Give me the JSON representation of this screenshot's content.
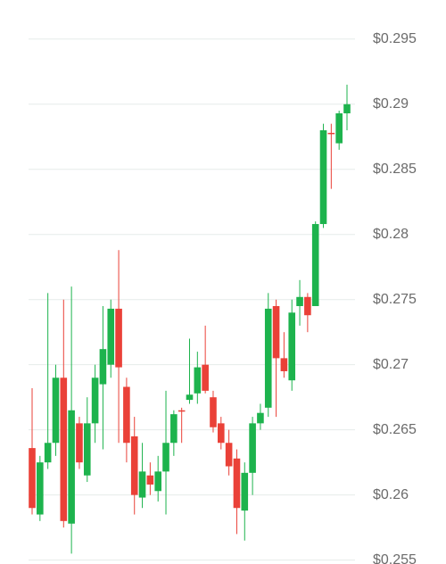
{
  "chart_data": {
    "type": "candlestick",
    "up_color": "#1db34d",
    "down_color": "#ea4138",
    "grid": true,
    "ylim": [
      0.2547,
      0.298
    ],
    "yticks": [
      {
        "value": 0.255,
        "label": "$0.255"
      },
      {
        "value": 0.26,
        "label": "$0.26"
      },
      {
        "value": 0.265,
        "label": "$0.265"
      },
      {
        "value": 0.27,
        "label": "$0.27"
      },
      {
        "value": 0.275,
        "label": "$0.275"
      },
      {
        "value": 0.28,
        "label": "$0.28"
      },
      {
        "value": 0.285,
        "label": "$0.285"
      },
      {
        "value": 0.29,
        "label": "$0.29"
      },
      {
        "value": 0.295,
        "label": "$0.295"
      }
    ],
    "open": [
      0.2636,
      0.2585,
      0.2625,
      0.264,
      0.269,
      0.2578,
      0.2655,
      0.2615,
      0.2655,
      0.2685,
      0.27,
      0.2743,
      0.2683,
      0.2645,
      0.2598,
      0.2615,
      0.2603,
      0.2618,
      0.264,
      0.2665,
      0.2673,
      0.2678,
      0.27,
      0.2675,
      0.2655,
      0.264,
      0.2628,
      0.2588,
      0.2617,
      0.2655,
      0.2667,
      0.2745,
      0.2705,
      0.2688,
      0.2745,
      0.2752,
      0.2745,
      0.2808,
      0.2878,
      0.287,
      0.2893
    ],
    "high": [
      0.2682,
      0.263,
      0.2755,
      0.27,
      0.275,
      0.276,
      0.266,
      0.2675,
      0.27,
      0.2745,
      0.275,
      0.2788,
      0.269,
      0.266,
      0.264,
      0.2625,
      0.263,
      0.268,
      0.2665,
      0.2667,
      0.272,
      0.271,
      0.273,
      0.268,
      0.266,
      0.265,
      0.2635,
      0.2625,
      0.266,
      0.267,
      0.2755,
      0.275,
      0.2725,
      0.275,
      0.2765,
      0.2755,
      0.281,
      0.2885,
      0.2885,
      0.2895,
      0.2915
    ],
    "low": [
      0.2585,
      0.258,
      0.262,
      0.263,
      0.2575,
      0.2555,
      0.262,
      0.261,
      0.264,
      0.2635,
      0.269,
      0.264,
      0.2625,
      0.2585,
      0.259,
      0.26,
      0.2595,
      0.2585,
      0.263,
      0.264,
      0.267,
      0.267,
      0.2678,
      0.2648,
      0.2635,
      0.2615,
      0.257,
      0.2565,
      0.26,
      0.265,
      0.266,
      0.266,
      0.269,
      0.268,
      0.273,
      0.2725,
      0.2745,
      0.2805,
      0.2835,
      0.2865,
      0.288
    ],
    "close": [
      0.259,
      0.2625,
      0.264,
      0.269,
      0.258,
      0.2665,
      0.2625,
      0.2655,
      0.269,
      0.2712,
      0.2743,
      0.2698,
      0.264,
      0.26,
      0.2618,
      0.2608,
      0.2618,
      0.264,
      0.2662,
      0.2664,
      0.2677,
      0.2698,
      0.268,
      0.2652,
      0.264,
      0.2622,
      0.259,
      0.2617,
      0.2655,
      0.2663,
      0.2743,
      0.2705,
      0.2695,
      0.274,
      0.2752,
      0.2738,
      0.2808,
      0.288,
      0.2877,
      0.2893,
      0.29
    ]
  }
}
